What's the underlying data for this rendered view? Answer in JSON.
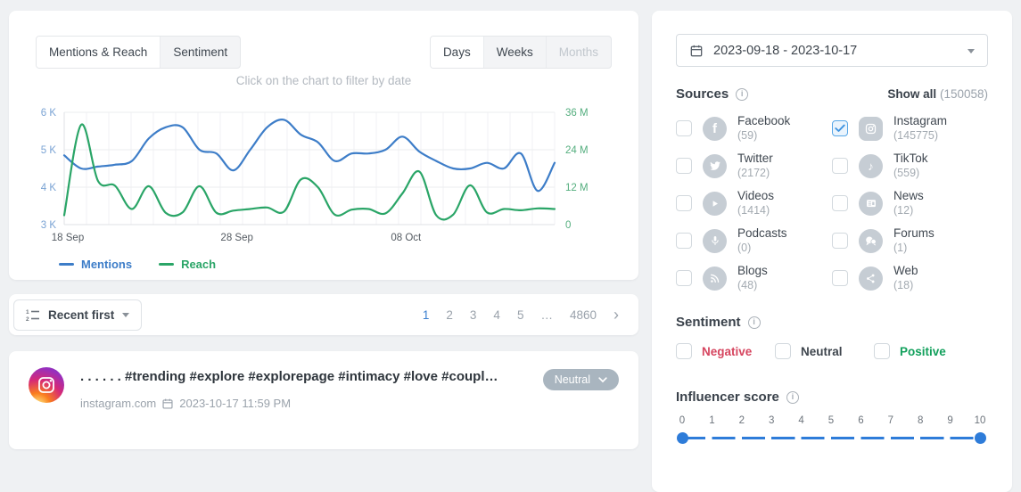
{
  "chart_panel": {
    "tabs": [
      {
        "label": "Mentions & Reach",
        "active": true
      },
      {
        "label": "Sentiment",
        "active": false
      }
    ],
    "granularity": [
      {
        "label": "Days",
        "active": true,
        "disabled": false
      },
      {
        "label": "Weeks",
        "active": false,
        "disabled": false
      },
      {
        "label": "Months",
        "active": false,
        "disabled": true
      }
    ],
    "hint": "Click on the chart to filter by date",
    "legend": [
      {
        "label": "Mentions",
        "color": "#3d7dc8"
      },
      {
        "label": "Reach",
        "color": "#2aa567"
      }
    ]
  },
  "chart_data": {
    "type": "line",
    "title": "",
    "x_labels": [
      "18 Sep",
      "28 Sep",
      "08 Oct"
    ],
    "x_label_positions": [
      0,
      10,
      20
    ],
    "n_points": 30,
    "grid": true,
    "legend_position": "bottom-left",
    "left_axis": {
      "label": "Mentions",
      "ticks": [
        "6 K",
        "5 K",
        "4 K",
        "3 K"
      ],
      "min": 3,
      "max": 6,
      "unit": "K",
      "color": "#7aa3d4"
    },
    "right_axis": {
      "label": "Reach",
      "ticks": [
        "36 M",
        "24 M",
        "12 M",
        "0"
      ],
      "min": 0,
      "max": 36,
      "unit": "M",
      "color": "#54ae7e"
    },
    "series": [
      {
        "name": "Mentions",
        "axis": "left",
        "unit": "K",
        "color": "#3d7dc8",
        "values": [
          4.85,
          4.5,
          4.55,
          4.6,
          4.7,
          5.3,
          5.6,
          5.6,
          5.0,
          4.9,
          4.45,
          5.0,
          5.6,
          5.8,
          5.4,
          5.2,
          4.7,
          4.9,
          4.9,
          5.0,
          5.35,
          4.95,
          4.7,
          4.5,
          4.5,
          4.65,
          4.5,
          4.9,
          3.9,
          4.65
        ]
      },
      {
        "name": "Reach",
        "axis": "right",
        "unit": "M",
        "color": "#2aa567",
        "values": [
          3,
          32,
          14,
          12.5,
          5,
          12.3,
          3.8,
          3.9,
          12.3,
          3.8,
          4.5,
          5,
          5.5,
          4.2,
          14.5,
          12,
          3.2,
          4.8,
          5,
          3.6,
          10,
          17,
          3,
          3.2,
          12.6,
          3.9,
          5,
          4.6,
          5.2,
          5
        ]
      }
    ]
  },
  "sort_bar": {
    "sort_label": "Recent first",
    "pages": [
      "1",
      "2",
      "3",
      "4",
      "5",
      "…",
      "4860"
    ],
    "active_page": "1",
    "next_label": "›"
  },
  "mention": {
    "title": ". . . . . . #trending #explore #explorepage #intimacy #love #coupl…",
    "source": "instagram.com",
    "timestamp": "2023-10-17 11:59 PM",
    "sentiment_label": "Neutral"
  },
  "filters": {
    "date_range": "2023-09-18 - 2023-10-17",
    "sources": {
      "title": "Sources",
      "show_all": "Show all",
      "total": "(150058)",
      "items": [
        {
          "name": "Facebook",
          "count": "(59)",
          "icon": "facebook",
          "checked": false
        },
        {
          "name": "Instagram",
          "count": "(145775)",
          "icon": "instagram",
          "checked": true
        },
        {
          "name": "Twitter",
          "count": "(2172)",
          "icon": "twitter",
          "checked": false
        },
        {
          "name": "TikTok",
          "count": "(559)",
          "icon": "tiktok",
          "checked": false
        },
        {
          "name": "Videos",
          "count": "(1414)",
          "icon": "videos",
          "checked": false
        },
        {
          "name": "News",
          "count": "(12)",
          "icon": "news",
          "checked": false
        },
        {
          "name": "Podcasts",
          "count": "(0)",
          "icon": "podcasts",
          "checked": false
        },
        {
          "name": "Forums",
          "count": "(1)",
          "icon": "forums",
          "checked": false
        },
        {
          "name": "Blogs",
          "count": "(48)",
          "icon": "blogs",
          "checked": false
        },
        {
          "name": "Web",
          "count": "(18)",
          "icon": "web",
          "checked": false
        }
      ]
    },
    "sentiment": {
      "title": "Sentiment",
      "options": [
        {
          "label": "Negative",
          "color": "#d6455f",
          "checked": false
        },
        {
          "label": "Neutral",
          "color": "#3e454d",
          "checked": false
        },
        {
          "label": "Positive",
          "color": "#12a05c",
          "checked": false
        }
      ]
    },
    "influencer": {
      "title": "Influencer score",
      "ticks": [
        "0",
        "1",
        "2",
        "3",
        "4",
        "5",
        "6",
        "7",
        "8",
        "9",
        "10"
      ],
      "handles": [
        0,
        10
      ],
      "color": "#2e7cd9"
    }
  }
}
